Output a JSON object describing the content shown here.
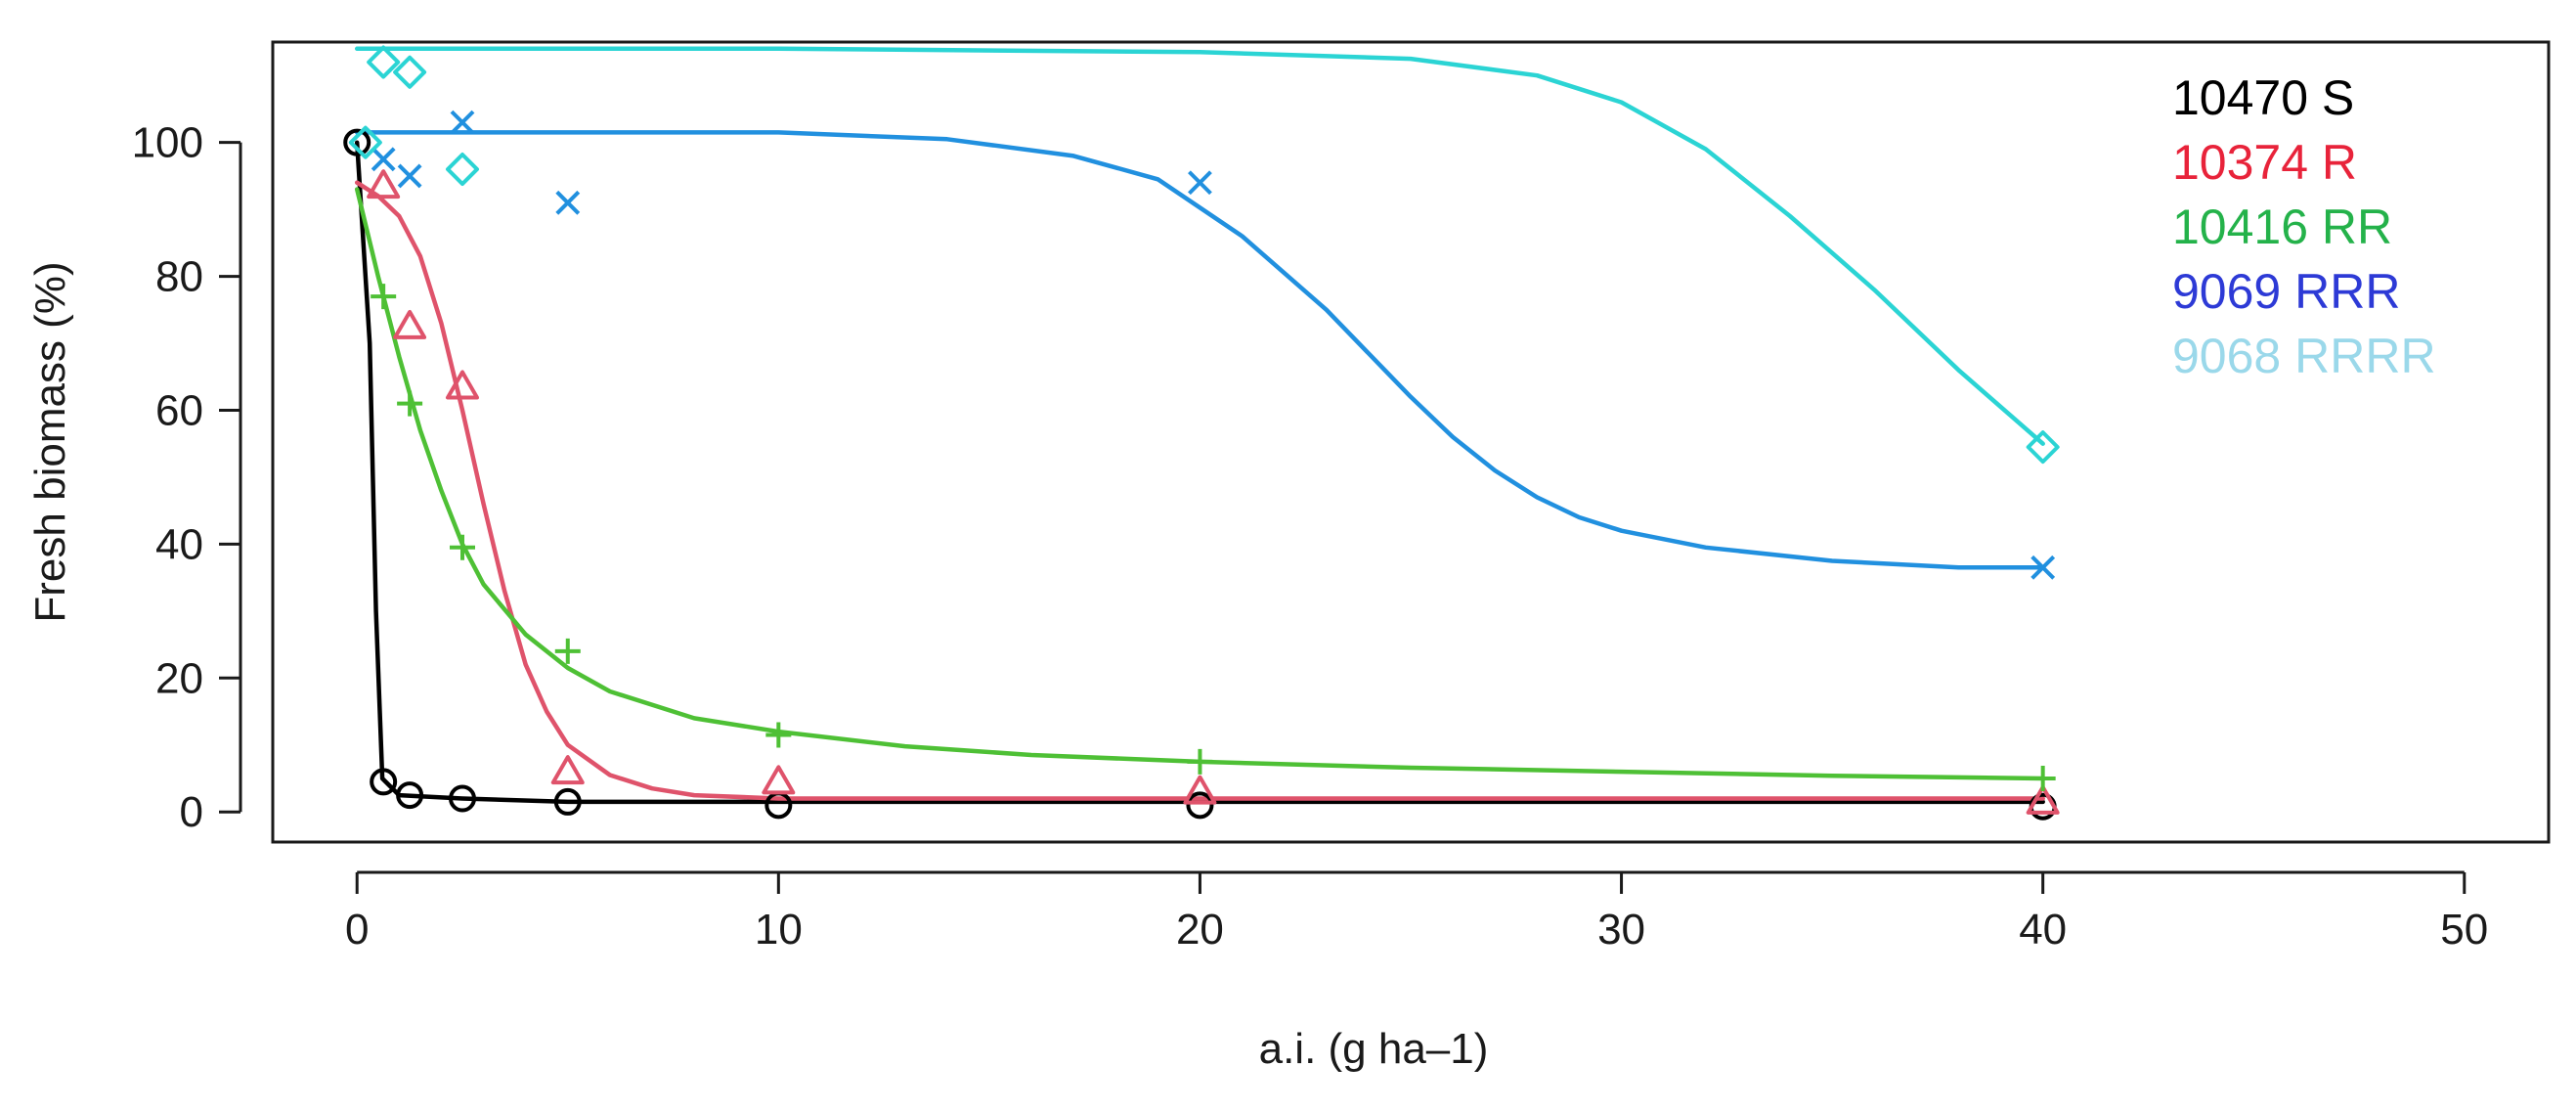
{
  "chart_data": {
    "type": "scatter",
    "xlabel": "a.i. (g ha–1)",
    "ylabel": "Fresh biomass (%)",
    "xlim": [
      -2,
      52
    ],
    "ylim": [
      -4.5,
      115
    ],
    "xticks": [
      0,
      10,
      20,
      30,
      40,
      50
    ],
    "yticks": [
      0,
      20,
      40,
      60,
      80,
      100
    ],
    "legend_position": "top-right",
    "grid": false,
    "series": [
      {
        "name": "10470 S",
        "color": "#000000",
        "legend_color": "#000000",
        "marker": "circle",
        "points": [
          [
            0,
            100
          ],
          [
            0.625,
            4.5
          ],
          [
            1.25,
            2.5
          ],
          [
            2.5,
            2
          ],
          [
            5,
            1.5
          ],
          [
            10,
            1
          ],
          [
            20,
            1
          ],
          [
            40,
            0.8
          ]
        ],
        "fit": [
          [
            0,
            100
          ],
          [
            0.3,
            70
          ],
          [
            0.45,
            30
          ],
          [
            0.6,
            5
          ],
          [
            1,
            2.5
          ],
          [
            2.5,
            2
          ],
          [
            5,
            1.5
          ],
          [
            40,
            1.5
          ]
        ]
      },
      {
        "name": "10374 R",
        "color": "#df536b",
        "legend_color": "#e8233a",
        "marker": "triangle",
        "points": [
          [
            0.625,
            93.5
          ],
          [
            1.25,
            72.5
          ],
          [
            2.5,
            63.5
          ],
          [
            5,
            6
          ],
          [
            10,
            4.5
          ],
          [
            20,
            3
          ],
          [
            40,
            1.5
          ]
        ],
        "fit": [
          [
            0,
            94
          ],
          [
            0.5,
            92
          ],
          [
            1,
            89
          ],
          [
            1.5,
            83
          ],
          [
            2,
            73
          ],
          [
            2.5,
            60
          ],
          [
            3,
            46
          ],
          [
            3.5,
            33
          ],
          [
            4,
            22
          ],
          [
            4.5,
            15
          ],
          [
            5,
            10
          ],
          [
            6,
            5.5
          ],
          [
            7,
            3.5
          ],
          [
            8,
            2.5
          ],
          [
            10,
            2
          ],
          [
            15,
            2
          ],
          [
            20,
            2
          ],
          [
            40,
            2
          ]
        ]
      },
      {
        "name": "10416 RR",
        "color": "#4ec035",
        "legend_color": "#24b24a",
        "marker": "plus",
        "points": [
          [
            0.625,
            77
          ],
          [
            1.25,
            61
          ],
          [
            2.5,
            39.5
          ],
          [
            5,
            24
          ],
          [
            10,
            11.5
          ],
          [
            20,
            7.5
          ],
          [
            40,
            5
          ]
        ],
        "fit": [
          [
            0,
            93
          ],
          [
            0.5,
            80
          ],
          [
            1,
            68
          ],
          [
            1.5,
            57
          ],
          [
            2,
            48
          ],
          [
            2.5,
            40
          ],
          [
            3,
            34
          ],
          [
            4,
            26.5
          ],
          [
            5,
            21.5
          ],
          [
            6,
            18
          ],
          [
            8,
            14
          ],
          [
            10,
            12
          ],
          [
            13,
            9.8
          ],
          [
            16,
            8.5
          ],
          [
            20,
            7.5
          ],
          [
            25,
            6.6
          ],
          [
            30,
            6
          ],
          [
            35,
            5.4
          ],
          [
            40,
            5
          ]
        ]
      },
      {
        "name": "9069 RRR",
        "color": "#2190df",
        "legend_color": "#2d3ad6",
        "marker": "x",
        "points": [
          [
            0.625,
            97.5
          ],
          [
            1.25,
            95
          ],
          [
            2.5,
            103
          ],
          [
            5,
            91
          ],
          [
            20,
            94
          ],
          [
            40,
            36.5
          ]
        ],
        "fit": [
          [
            0,
            101.5
          ],
          [
            10,
            101.5
          ],
          [
            14,
            100.5
          ],
          [
            17,
            98
          ],
          [
            19,
            94.5
          ],
          [
            21,
            86
          ],
          [
            23,
            75
          ],
          [
            25,
            62
          ],
          [
            26,
            56
          ],
          [
            27,
            51
          ],
          [
            28,
            47
          ],
          [
            29,
            44
          ],
          [
            30,
            42
          ],
          [
            32,
            39.5
          ],
          [
            35,
            37.5
          ],
          [
            38,
            36.5
          ],
          [
            40,
            36.5
          ]
        ]
      },
      {
        "name": "9068 RRRR",
        "color": "#2bd4d4",
        "legend_color": "#9ad8ea",
        "marker": "diamond",
        "points": [
          [
            0.2,
            100
          ],
          [
            0.625,
            112
          ],
          [
            1.25,
            110.5
          ],
          [
            2.5,
            96
          ],
          [
            40,
            54.5
          ]
        ],
        "fit": [
          [
            0,
            114
          ],
          [
            10,
            114
          ],
          [
            20,
            113.5
          ],
          [
            25,
            112.5
          ],
          [
            28,
            110
          ],
          [
            30,
            106
          ],
          [
            32,
            99
          ],
          [
            34,
            89
          ],
          [
            36,
            78
          ],
          [
            38,
            66
          ],
          [
            40,
            55
          ]
        ]
      }
    ]
  }
}
